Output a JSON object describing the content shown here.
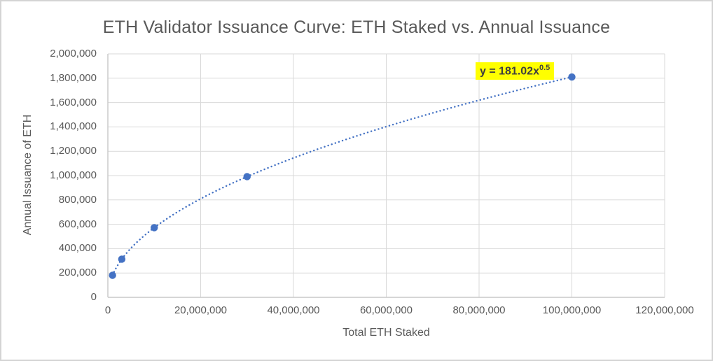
{
  "chart_data": {
    "type": "scatter",
    "title": "ETH Validator Issuance Curve: ETH Staked vs. Annual Issuance",
    "xlabel": "Total ETH Staked",
    "ylabel": "Annual Issuance of ETH",
    "xlim": [
      0,
      120000000
    ],
    "ylim": [
      0,
      2000000
    ],
    "grid": true,
    "x_ticks": [
      0,
      20000000,
      40000000,
      60000000,
      80000000,
      100000000,
      120000000
    ],
    "x_tick_labels": [
      "0",
      "20,000,000",
      "40,000,000",
      "60,000,000",
      "80,000,000",
      "100,000,000",
      "120,000,000"
    ],
    "y_ticks": [
      0,
      200000,
      400000,
      600000,
      800000,
      1000000,
      1200000,
      1400000,
      1600000,
      1800000,
      2000000
    ],
    "y_tick_labels": [
      "0",
      "200,000",
      "400,000",
      "600,000",
      "800,000",
      "1,000,000",
      "1,200,000",
      "1,400,000",
      "1,600,000",
      "1,800,000",
      "2,000,000"
    ],
    "series": [
      {
        "name": "Annual issuance vs staked ETH",
        "points": [
          {
            "x": 1000000,
            "y": 181020
          },
          {
            "x": 3000000,
            "y": 313536
          },
          {
            "x": 10000000,
            "y": 572434
          },
          {
            "x": 30000000,
            "y": 991487
          },
          {
            "x": 100000000,
            "y": 1810200
          }
        ]
      }
    ],
    "trendline": {
      "type": "power",
      "coefficient": 181.02,
      "exponent": 0.5,
      "x_start": 1000000,
      "x_end": 100000000,
      "line_style": "dotted",
      "equation_base": "y = 181.02x",
      "equation_exponent": "0.5"
    },
    "colors": {
      "series": "#4472C4",
      "gridline": "#d9d9d9",
      "axis_line": "#c8c8c8",
      "text": "#595959",
      "equation_bg": "#ffff00",
      "equation_text": "#3f3f3f"
    }
  }
}
